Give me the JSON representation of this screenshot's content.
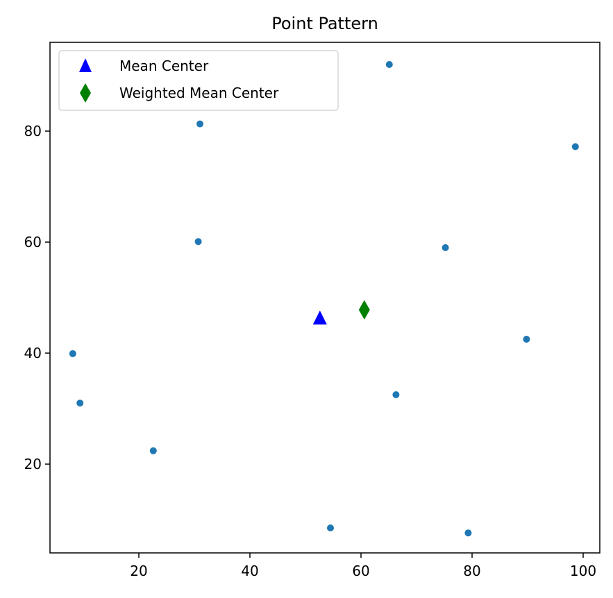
{
  "chart_data": {
    "type": "scatter",
    "title": "Point Pattern",
    "xlabel": "",
    "ylabel": "",
    "xlim": [
      4,
      103
    ],
    "ylim": [
      4,
      96
    ],
    "xticks": [
      20,
      40,
      60,
      80,
      100
    ],
    "yticks": [
      20,
      40,
      60,
      80
    ],
    "grid": false,
    "legend_position": "top-left",
    "points": {
      "color": "#1f77b4",
      "x": [
        8.1,
        9.4,
        22.6,
        30.7,
        31.0,
        54.5,
        65.1,
        66.3,
        75.2,
        79.3,
        89.8,
        98.6
      ],
      "y": [
        39.9,
        31.0,
        22.4,
        60.1,
        81.3,
        8.5,
        92.0,
        32.5,
        59.0,
        7.6,
        42.5,
        77.2
      ]
    },
    "series": [
      {
        "name": "Mean Center",
        "marker": "triangle",
        "color": "#0000ff",
        "x": 52.6,
        "y": 46.3
      },
      {
        "name": "Weighted Mean Center",
        "marker": "diamond",
        "color": "#008000",
        "x": 60.6,
        "y": 47.8
      }
    ]
  }
}
